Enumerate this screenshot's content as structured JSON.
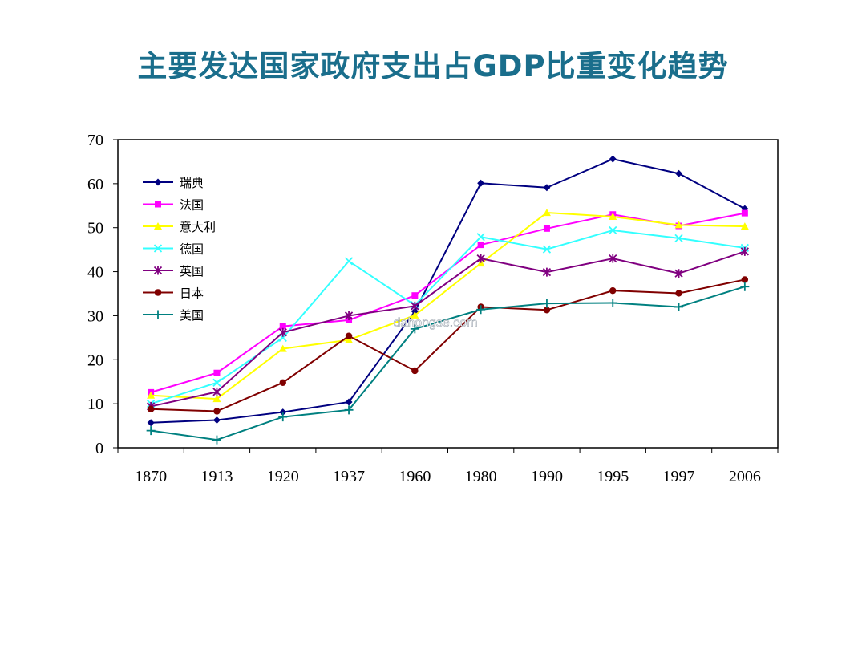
{
  "slide": {
    "title": "主要发达国家政府支出占GDP比重变化趋势",
    "watermark": "dahongse.com"
  },
  "chart_data": {
    "type": "line",
    "title": "主要发达国家政府支出占GDP比重变化趋势",
    "xlabel": "",
    "ylabel": "",
    "categories": [
      "1870",
      "1913",
      "1920",
      "1937",
      "1960",
      "1980",
      "1990",
      "1995",
      "1997",
      "2006"
    ],
    "ylim": [
      0,
      70
    ],
    "yticks": [
      0,
      10,
      20,
      30,
      40,
      50,
      60,
      70
    ],
    "grid": false,
    "legend_position": "top-left",
    "series": [
      {
        "name": "瑞典",
        "color": "#000080",
        "marker": "diamond",
        "values": [
          5.7,
          6.3,
          8.1,
          10.4,
          31.0,
          60.1,
          59.1,
          65.6,
          62.3,
          54.3
        ]
      },
      {
        "name": "法国",
        "color": "#ff00ff",
        "marker": "square",
        "values": [
          12.6,
          17.0,
          27.6,
          29.0,
          34.6,
          46.1,
          49.8,
          53.0,
          50.4,
          53.3
        ]
      },
      {
        "name": "意大利",
        "color": "#ffff00",
        "marker": "triangle",
        "values": [
          11.9,
          11.1,
          22.5,
          24.5,
          30.1,
          41.9,
          53.4,
          52.5,
          50.6,
          50.3
        ]
      },
      {
        "name": "德国",
        "color": "#33ffff",
        "marker": "x",
        "values": [
          10.0,
          14.8,
          25.0,
          42.4,
          32.4,
          47.9,
          45.1,
          49.4,
          47.6,
          45.4
        ]
      },
      {
        "name": "英国",
        "color": "#800080",
        "marker": "star",
        "values": [
          9.4,
          12.7,
          26.2,
          30.0,
          32.2,
          43.0,
          39.9,
          43.0,
          39.6,
          44.6
        ]
      },
      {
        "name": "日本",
        "color": "#800000",
        "marker": "circle",
        "values": [
          8.8,
          8.3,
          14.8,
          25.4,
          17.5,
          32.0,
          31.3,
          35.7,
          35.1,
          38.2
        ]
      },
      {
        "name": "美国",
        "color": "#008080",
        "marker": "plus",
        "values": [
          3.9,
          1.8,
          7.0,
          8.6,
          27.0,
          31.4,
          32.8,
          32.9,
          32.0,
          36.6
        ]
      }
    ]
  }
}
